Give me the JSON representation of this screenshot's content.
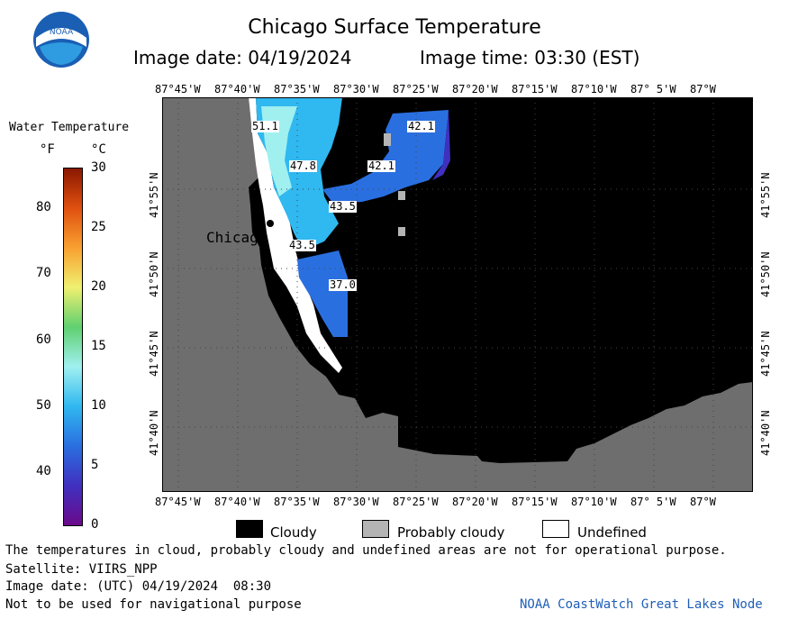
{
  "title": "Chicago Surface Temperature",
  "image_date_label": "Image date: 04/19/2024",
  "image_time_label": "Image time: 03:30 (EST)",
  "logo": {
    "text": "NOAA",
    "colors": {
      "outer": "#1a5fb4",
      "inner": "#2f9be0",
      "bird": "#ffffff"
    }
  },
  "colorbar": {
    "title": "Water Temperature",
    "unit_f": "°F",
    "unit_c": "°C",
    "fahrenheit_ticks": [
      "80",
      "70",
      "60",
      "50",
      "40"
    ],
    "celsius_ticks": [
      "30",
      "25",
      "20",
      "15",
      "10",
      "5",
      "0"
    ],
    "range_c": [
      0,
      30
    ],
    "colors": [
      "#6a0a8a",
      "#4030c0",
      "#2a6fe0",
      "#30b8f0",
      "#a0f0f0",
      "#60d070",
      "#f0f070",
      "#f8a030",
      "#e05010",
      "#8a1800"
    ]
  },
  "map": {
    "lon_ticks": [
      "87°45'W",
      "87°40'W",
      "87°35'W",
      "87°30'W",
      "87°25'W",
      "87°20'W",
      "87°15'W",
      "87°10'W",
      "87° 5'W",
      "87°W"
    ],
    "lat_ticks": [
      "41°55'N",
      "41°50'N",
      "41°45'N",
      "41°40'N"
    ],
    "city": "Chicago",
    "contour_labels": [
      "51.1",
      "47.8",
      "43.5",
      "43.5",
      "37.0",
      "42.1",
      "42.1"
    ],
    "colors": {
      "land": "#6e6e6e",
      "cloud": "#000000",
      "undefined": "#ffffff",
      "probably_cloudy": "#b4b4b4"
    }
  },
  "legend": {
    "cloudy": "Cloudy",
    "probably_cloudy": "Probably cloudy",
    "undefined": "Undefined"
  },
  "footer": {
    "disclaimer": "The temperatures in cloud, probably cloudy and undefined areas are not for operational purpose.",
    "satellite": "Satellite: VIIRS_NPP",
    "utc_date": "Image date: (UTC) 04/19/2024  08:30",
    "nav_warning": "Not to be used for navigational purpose",
    "credit": "NOAA CoastWatch Great Lakes Node",
    "credit_color": "#1f5fb8"
  }
}
